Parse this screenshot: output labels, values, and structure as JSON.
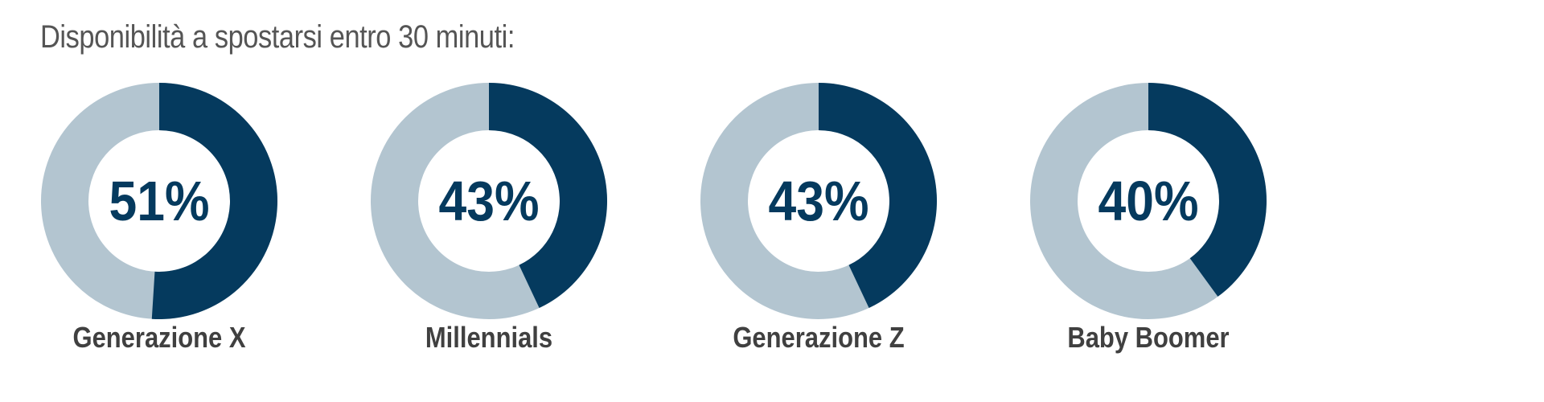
{
  "colors": {
    "filled": "#053a5e",
    "remaining": "#b3c5d0",
    "label": "#404040",
    "title": "#555555"
  },
  "chart_data": {
    "type": "pie",
    "title": "Disponibilità a spostarsi entro 30 minuti:",
    "items": [
      {
        "category": "Generazione X",
        "value": 51,
        "display": "51%"
      },
      {
        "category": "Millennials",
        "value": 43,
        "display": "43%"
      },
      {
        "category": "Generazione Z",
        "value": 43,
        "display": "43%"
      },
      {
        "category": "Baby Boomer",
        "value": 40,
        "display": "40%"
      }
    ]
  }
}
